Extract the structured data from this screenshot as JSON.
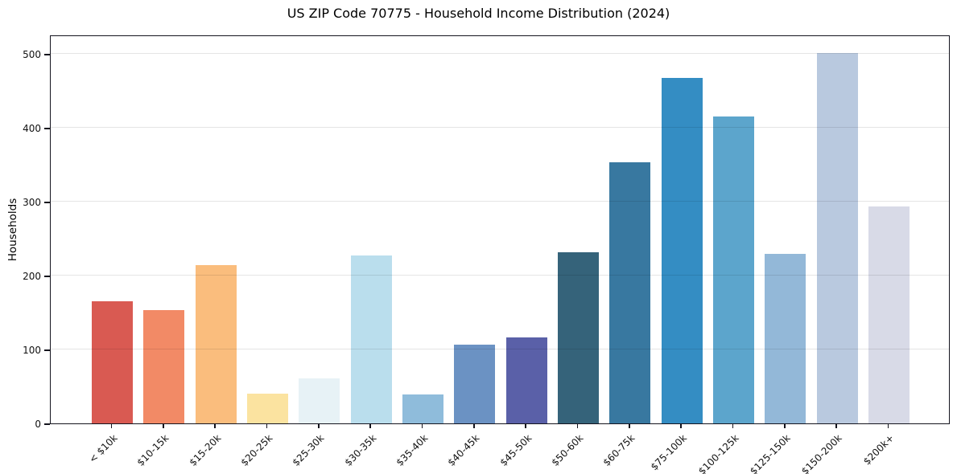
{
  "chart_data": {
    "type": "bar",
    "title": "US ZIP Code 70775 - Household Income Distribution (2024)",
    "xlabel": "",
    "ylabel": "Households",
    "categories": [
      "< $10k",
      "$10-15k",
      "$15-20k",
      "$20-25k",
      "$25-30k",
      "$30-35k",
      "$35-40k",
      "$40-45k",
      "$45-50k",
      "$50-60k",
      "$60-75k",
      "$75-100k",
      "$100-125k",
      "$125-150k",
      "$150-200k",
      "$200k+"
    ],
    "values": [
      165,
      153,
      214,
      40,
      61,
      227,
      39,
      106,
      116,
      232,
      353,
      467,
      415,
      229,
      501,
      293
    ],
    "bar_colors": [
      "#d95a52",
      "#f28a66",
      "#fabd7d",
      "#fbe3a0",
      "#e7f2f6",
      "#badeed",
      "#8fbcdb",
      "#6b92c3",
      "#5a60a8",
      "#35637a",
      "#3878a0",
      "#348dc3",
      "#5ca5cc",
      "#93b8d8",
      "#b9c9df",
      "#d8dae7"
    ],
    "yticks": [
      0,
      100,
      200,
      300,
      400,
      500
    ],
    "ylim": [
      0,
      526
    ],
    "grid": "horizontal",
    "legend": "none",
    "background_color": "#ffffff",
    "spine_color": "#14141e",
    "gridline_color": "rgba(0,0,0,0.10)"
  }
}
